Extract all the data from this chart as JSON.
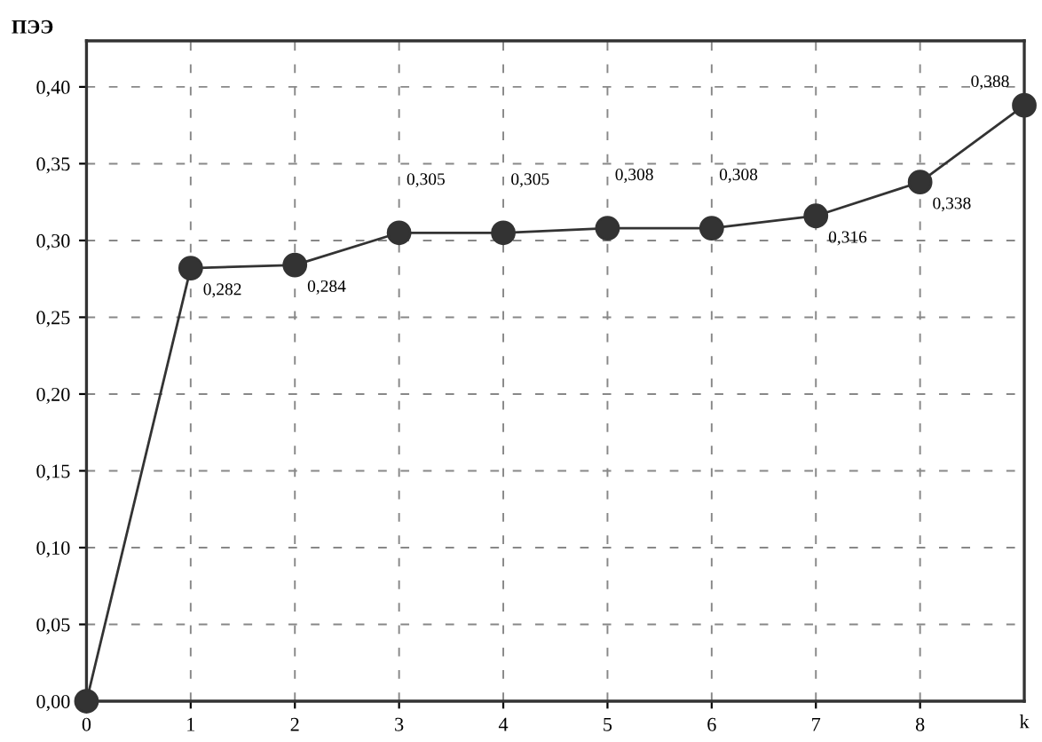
{
  "chart_data": {
    "type": "line",
    "ylabel": "ПЭЭ",
    "xlabel": "k",
    "x": [
      0,
      1,
      2,
      3,
      4,
      5,
      6,
      7,
      8,
      9
    ],
    "series": [
      {
        "color": "#333333",
        "values": [
          0.0,
          0.282,
          0.284,
          0.305,
          0.305,
          0.308,
          0.308,
          0.316,
          0.338,
          0.388
        ],
        "value_labels": [
          null,
          "0,282",
          "0,284",
          "0,305",
          "0,305",
          "0,308",
          "0,308",
          "0,316",
          "0,338",
          "0,388"
        ]
      }
    ],
    "xlim": [
      0,
      9
    ],
    "xticks": [
      0,
      1,
      2,
      3,
      4,
      5,
      6,
      7,
      8
    ],
    "ylim": [
      0,
      0.43
    ],
    "yticks": [
      {
        "value": 0,
        "label": "0,00"
      },
      {
        "value": 0.05,
        "label": "0,05"
      },
      {
        "value": 0.1,
        "label": "0,10"
      },
      {
        "value": 0.15,
        "label": "0,15"
      },
      {
        "value": 0.2,
        "label": "0,20"
      },
      {
        "value": 0.25,
        "label": "0,25"
      },
      {
        "value": 0.3,
        "label": "0,30"
      },
      {
        "value": 0.35,
        "label": "0,35"
      },
      {
        "value": 0.4,
        "label": "0,40"
      }
    ],
    "grid": true,
    "marker": "circle",
    "line_style": "solid",
    "legend": false
  }
}
